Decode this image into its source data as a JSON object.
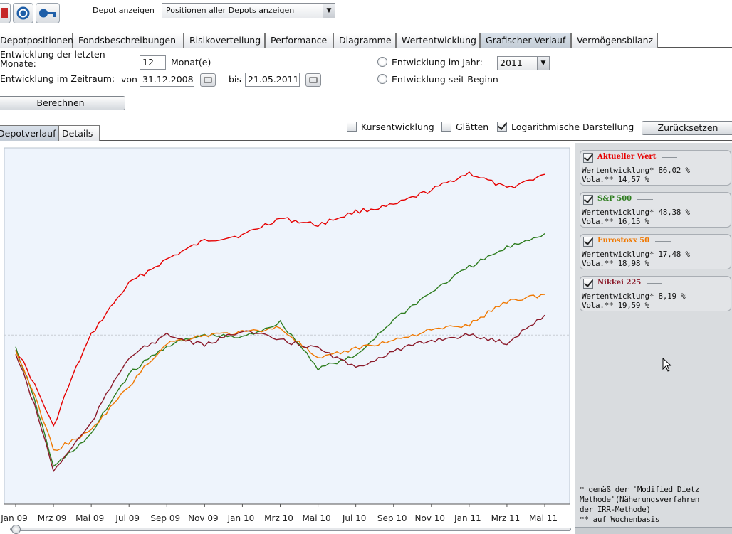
{
  "toolbar": {
    "icons": [
      "pdf-icon",
      "refresh-icon",
      "key-icon"
    ],
    "depot_label": "Depot anzeigen",
    "depot_select": "Positionen aller Depots anzeigen"
  },
  "tabs": [
    "Depotpositionen",
    "Fondsbeschreibungen",
    "Risikoverteilung",
    "Performance",
    "Diagramme",
    "Wertentwicklung",
    "Grafischer Verlauf",
    "Vermögensbilanz"
  ],
  "active_tab": "Grafischer Verlauf",
  "controls": {
    "months_label": "Entwicklung der letzten Monate:",
    "months_value": "12",
    "months_unit": "Monat(e)",
    "range_label": "Entwicklung im Zeitraum:",
    "from_label": "von",
    "from_value": "31.12.2008",
    "to_label": "bis",
    "to_value": "21.05.2011",
    "year_label": "Entwicklung im Jahr:",
    "year_value": "2011",
    "since_label": "Entwicklung seit Beginn",
    "calc_button": "Berechnen",
    "kurs_label": "Kursentwicklung",
    "kurs_checked": false,
    "glaetten_label": "Glätten",
    "glaetten_checked": false,
    "log_label": "Logarithmische Darstellung",
    "log_checked": true,
    "reset_button": "Zurücksetzen"
  },
  "sub_tabs": [
    "Depotverlauf",
    "Details"
  ],
  "active_sub_tab": "Depotverlauf",
  "chart_data": {
    "type": "line",
    "x": [
      "Jan 09",
      "Mrz 09",
      "Mai 09",
      "Jul 09",
      "Sep 09",
      "Nov 09",
      "Jan 10",
      "Mrz 10",
      "Mai 10",
      "Jul 10",
      "Sep 10",
      "Nov 10",
      "Jan 11",
      "Mrz 11",
      "Mai 11"
    ],
    "log_scale": true,
    "grid": "horizontal dashed",
    "series": [
      {
        "name": "Aktueller Wert",
        "color": "#e60000",
        "values": [
          -5,
          -30,
          0,
          22,
          34,
          44,
          47,
          57,
          53,
          61,
          65,
          75,
          87,
          76,
          86
        ]
      },
      {
        "name": "S&P 500",
        "color": "#2e7d1f",
        "values": [
          -5,
          -40,
          -32,
          -14,
          -4,
          0,
          -1,
          5,
          -12,
          -8,
          6,
          18,
          30,
          40,
          48
        ]
      },
      {
        "name": "Eurostoxx 50",
        "color": "#f07800",
        "values": [
          -6,
          -36,
          -31,
          -18,
          -3,
          0,
          1,
          3,
          -9,
          -5,
          -2,
          2,
          4,
          14,
          17
        ]
      },
      {
        "name": "Nikkei 225",
        "color": "#8b1a2a",
        "values": [
          -7,
          -41,
          -29,
          -8,
          0,
          -4,
          2,
          -2,
          -5,
          -12,
          -6,
          -2,
          0,
          -3,
          8
        ]
      }
    ]
  },
  "legend": [
    {
      "name": "Aktueller Wert",
      "color": "#e60000",
      "perf_label": "Wertentwicklung*",
      "perf": "86,02 %",
      "vola_label": "Vola.**",
      "vola": "14,57 %"
    },
    {
      "name": "S&P 500",
      "color": "#2e7d1f",
      "perf_label": "Wertentwicklung*",
      "perf": "48,38 %",
      "vola_label": "Vola.**",
      "vola": "16,15 %"
    },
    {
      "name": "Eurostoxx 50",
      "color": "#f07800",
      "perf_label": "Wertentwicklung*",
      "perf": "17,48 %",
      "vola_label": "Vola.**",
      "vola": "18,98 %"
    },
    {
      "name": "Nikkei 225",
      "color": "#8b1a2a",
      "perf_label": "Wertentwicklung*",
      "perf": "8,19 %",
      "vola_label": "Vola.**",
      "vola": "19,59 %"
    }
  ],
  "footnote": [
    "* gemäß der 'Modified Dietz",
    "Methode'(Näherungsverfahren",
    "der IRR-Methode)",
    "** auf Wochenbasis"
  ]
}
